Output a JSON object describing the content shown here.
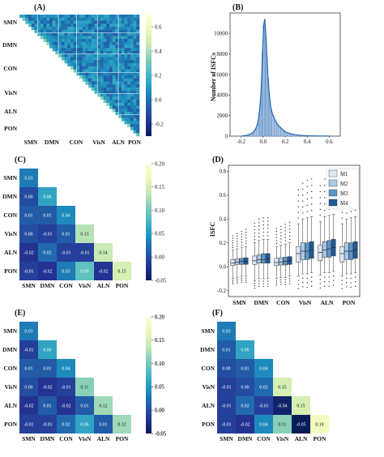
{
  "colors": {
    "cmap": [
      "#081d58",
      "#253494",
      "#225ea8",
      "#1d91c0",
      "#41b6c4",
      "#7fcdbb",
      "#c7e9b4",
      "#edf8b1",
      "#ffffd9"
    ],
    "hist_fill": "#a9c4e3",
    "hist_edge": "#4a7fba",
    "kde": "#2e6cb5",
    "box": [
      "#dae8f5",
      "#a8c8e6",
      "#5b95c8",
      "#1f5a97"
    ]
  },
  "chart_data": [
    {
      "id": "A",
      "type": "heatmap",
      "panel_label": "(A)",
      "networks": [
        "SMN",
        "DMN",
        "CON",
        "VisN",
        "ALN",
        "PON"
      ],
      "colorbar": {
        "range": [
          -0.3,
          0.7
        ],
        "ticks": [
          "-0.2",
          "0.0",
          "0.2",
          "0.4",
          "0.6"
        ]
      }
    },
    {
      "id": "B",
      "type": "histogram",
      "panel_label": "(B)",
      "ylabel": "Number of ISFCs",
      "xlim": [
        -0.3,
        0.7
      ],
      "ylim": [
        0,
        12000
      ],
      "xticks": [
        "-0.2",
        "0.0",
        "0.2",
        "0.4",
        "0.6"
      ],
      "yticks": [
        "0",
        "2000",
        "4000",
        "6000",
        "8000",
        "10000"
      ],
      "bins": [
        {
          "x": -0.2,
          "y": 30
        },
        {
          "x": -0.18,
          "y": 50
        },
        {
          "x": -0.16,
          "y": 80
        },
        {
          "x": -0.14,
          "y": 130
        },
        {
          "x": -0.12,
          "y": 220
        },
        {
          "x": -0.1,
          "y": 380
        },
        {
          "x": -0.08,
          "y": 650
        },
        {
          "x": -0.06,
          "y": 1150
        },
        {
          "x": -0.04,
          "y": 2200
        },
        {
          "x": -0.03,
          "y": 3300
        },
        {
          "x": -0.02,
          "y": 5200
        },
        {
          "x": -0.01,
          "y": 8200
        },
        {
          "x": 0.0,
          "y": 10800
        },
        {
          "x": 0.01,
          "y": 11400
        },
        {
          "x": 0.02,
          "y": 9800
        },
        {
          "x": 0.03,
          "y": 7600
        },
        {
          "x": 0.04,
          "y": 5600
        },
        {
          "x": 0.05,
          "y": 4200
        },
        {
          "x": 0.06,
          "y": 3200
        },
        {
          "x": 0.07,
          "y": 2500
        },
        {
          "x": 0.08,
          "y": 2000
        },
        {
          "x": 0.1,
          "y": 1500
        },
        {
          "x": 0.12,
          "y": 1150
        },
        {
          "x": 0.14,
          "y": 900
        },
        {
          "x": 0.16,
          "y": 700
        },
        {
          "x": 0.18,
          "y": 520
        },
        {
          "x": 0.2,
          "y": 380
        },
        {
          "x": 0.22,
          "y": 280
        },
        {
          "x": 0.25,
          "y": 190
        },
        {
          "x": 0.28,
          "y": 130
        },
        {
          "x": 0.32,
          "y": 80
        },
        {
          "x": 0.36,
          "y": 50
        },
        {
          "x": 0.4,
          "y": 30
        },
        {
          "x": 0.45,
          "y": 15
        },
        {
          "x": 0.5,
          "y": 8
        },
        {
          "x": 0.6,
          "y": 3
        }
      ]
    },
    {
      "id": "C",
      "type": "heatmap",
      "panel_label": "(C)",
      "networks": [
        "SMN",
        "DMN",
        "CON",
        "VisN",
        "ALN",
        "PON"
      ],
      "matrix": [
        [
          0.03
        ],
        [
          0.0,
          0.06
        ],
        [
          0.01,
          0.01,
          0.04
        ],
        [
          0.0,
          -0.01,
          0.01,
          0.13
        ],
        [
          -0.02,
          0.02,
          -0.01,
          -0.01,
          0.14
        ],
        [
          -0.01,
          -0.02,
          0.03,
          0.09,
          -0.02,
          0.15
        ]
      ],
      "labels": [
        [
          "0.03"
        ],
        [
          "0.00",
          "0.06"
        ],
        [
          "0.01",
          "0.01",
          "0.04"
        ],
        [
          "0.00",
          "-0.01",
          "0.01",
          "0.13"
        ],
        [
          "-0.02",
          "0.02",
          "-0.01",
          "-0.01",
          "0.14"
        ],
        [
          "-0.01",
          "-0.02",
          "0.03",
          "0.09",
          "-0.02",
          "0.15"
        ]
      ],
      "colorbar": {
        "range": [
          -0.05,
          0.2
        ],
        "ticks": [
          "-0.05",
          "0.00",
          "0.05",
          "0.10",
          "0.15",
          "0.20"
        ]
      }
    },
    {
      "id": "D",
      "type": "box",
      "panel_label": "(D)",
      "ylabel": "ISFC",
      "categories": [
        "SMN",
        "DMN",
        "CON",
        "VisN",
        "ALN",
        "PON"
      ],
      "ylim": [
        -0.25,
        0.85
      ],
      "yticks": [
        "-0.2",
        "0.0",
        "0.2",
        "0.4",
        "0.6",
        "0.8"
      ],
      "legend": [
        "M1",
        "M2",
        "M3",
        "M4"
      ],
      "legend_position": "top-right",
      "boxes": [
        [
          [
            -0.1,
            0.01,
            0.03,
            0.06,
            0.14
          ],
          [
            -0.09,
            0.02,
            0.04,
            0.065,
            0.15
          ],
          [
            -0.08,
            0.02,
            0.045,
            0.07,
            0.16
          ],
          [
            -0.08,
            0.02,
            0.045,
            0.075,
            0.17
          ]
        ],
        [
          [
            -0.12,
            0.02,
            0.05,
            0.09,
            0.2
          ],
          [
            -0.1,
            0.03,
            0.06,
            0.1,
            0.22
          ],
          [
            -0.1,
            0.03,
            0.06,
            0.11,
            0.23
          ],
          [
            -0.1,
            0.03,
            0.065,
            0.11,
            0.23
          ]
        ],
        [
          [
            -0.1,
            0.01,
            0.035,
            0.07,
            0.17
          ],
          [
            -0.09,
            0.015,
            0.04,
            0.075,
            0.18
          ],
          [
            -0.09,
            0.015,
            0.045,
            0.08,
            0.19
          ],
          [
            -0.08,
            0.02,
            0.05,
            0.085,
            0.2
          ]
        ],
        [
          [
            -0.08,
            0.04,
            0.11,
            0.17,
            0.36
          ],
          [
            -0.06,
            0.06,
            0.13,
            0.2,
            0.4
          ],
          [
            -0.06,
            0.06,
            0.13,
            0.2,
            0.41
          ],
          [
            -0.05,
            0.07,
            0.14,
            0.21,
            0.42
          ]
        ],
        [
          [
            -0.07,
            0.05,
            0.12,
            0.18,
            0.38
          ],
          [
            -0.05,
            0.08,
            0.14,
            0.21,
            0.42
          ],
          [
            -0.05,
            0.08,
            0.15,
            0.22,
            0.43
          ],
          [
            -0.04,
            0.09,
            0.16,
            0.23,
            0.44
          ]
        ],
        [
          [
            -0.08,
            0.04,
            0.11,
            0.17,
            0.36
          ],
          [
            -0.06,
            0.06,
            0.13,
            0.2,
            0.4
          ],
          [
            -0.06,
            0.06,
            0.13,
            0.2,
            0.41
          ],
          [
            -0.05,
            0.07,
            0.14,
            0.21,
            0.42
          ]
        ]
      ]
    },
    {
      "id": "E",
      "type": "heatmap",
      "panel_label": "(E)",
      "networks": [
        "SMN",
        "DMN",
        "CON",
        "VisN",
        "ALN",
        "PON"
      ],
      "matrix": [
        [
          0.03
        ],
        [
          -0.01,
          0.06
        ],
        [
          0.01,
          0.01,
          0.04
        ],
        [
          0.0,
          -0.02,
          -0.01,
          0.11
        ],
        [
          -0.02,
          0.01,
          -0.02,
          0.01,
          0.12
        ],
        [
          -0.01,
          -0.01,
          0.02,
          0.06,
          0.01,
          0.12
        ]
      ],
      "labels": [
        [
          "0.03"
        ],
        [
          "-0.01",
          "0.06"
        ],
        [
          "0.01",
          "0.01",
          "0.04"
        ],
        [
          "0.00",
          "-0.02",
          "-0.01",
          "0.11"
        ],
        [
          "-0.02",
          "0.01",
          "-0.02",
          "0.01",
          "0.12"
        ],
        [
          "-0.01",
          "-0.01",
          "0.02",
          "0.06",
          "0.01",
          "0.12"
        ]
      ],
      "colorbar": {
        "range": [
          -0.05,
          0.2
        ],
        "ticks": [
          "-0.05",
          "0.00",
          "0.05",
          "0.10",
          "0.15",
          "0.20"
        ]
      }
    },
    {
      "id": "F",
      "type": "heatmap",
      "panel_label": "(F)",
      "networks": [
        "SMN",
        "DMN",
        "CON",
        "VisN",
        "ALN",
        "PON"
      ],
      "matrix": [
        [
          0.03
        ],
        [
          0.01,
          0.06
        ],
        [
          0.0,
          0.01,
          0.04
        ],
        [
          -0.01,
          0.0,
          0.02,
          0.15
        ],
        [
          -0.01,
          0.02,
          -0.01,
          -0.04,
          0.15
        ],
        [
          -0.01,
          -0.02,
          0.04,
          0.11,
          -0.05,
          0.18
        ]
      ],
      "labels": [
        [
          "0.03"
        ],
        [
          "0.01",
          "0.06"
        ],
        [
          "0.00",
          "0.01",
          "0.04"
        ],
        [
          "-0.01",
          "0.00",
          "0.02",
          "0.15"
        ],
        [
          "-0.01",
          "0.02",
          "-0.01",
          "-0.04",
          "0.15"
        ],
        [
          "-0.01",
          "-0.02",
          "0.04",
          "0.11",
          "-0.05",
          "0.18"
        ]
      ],
      "colorbar": {
        "range": [
          -0.05,
          0.2
        ],
        "ticks": [
          "-0.05",
          "0.00",
          "0.05",
          "0.10",
          "0.15",
          "0.20"
        ]
      }
    }
  ]
}
